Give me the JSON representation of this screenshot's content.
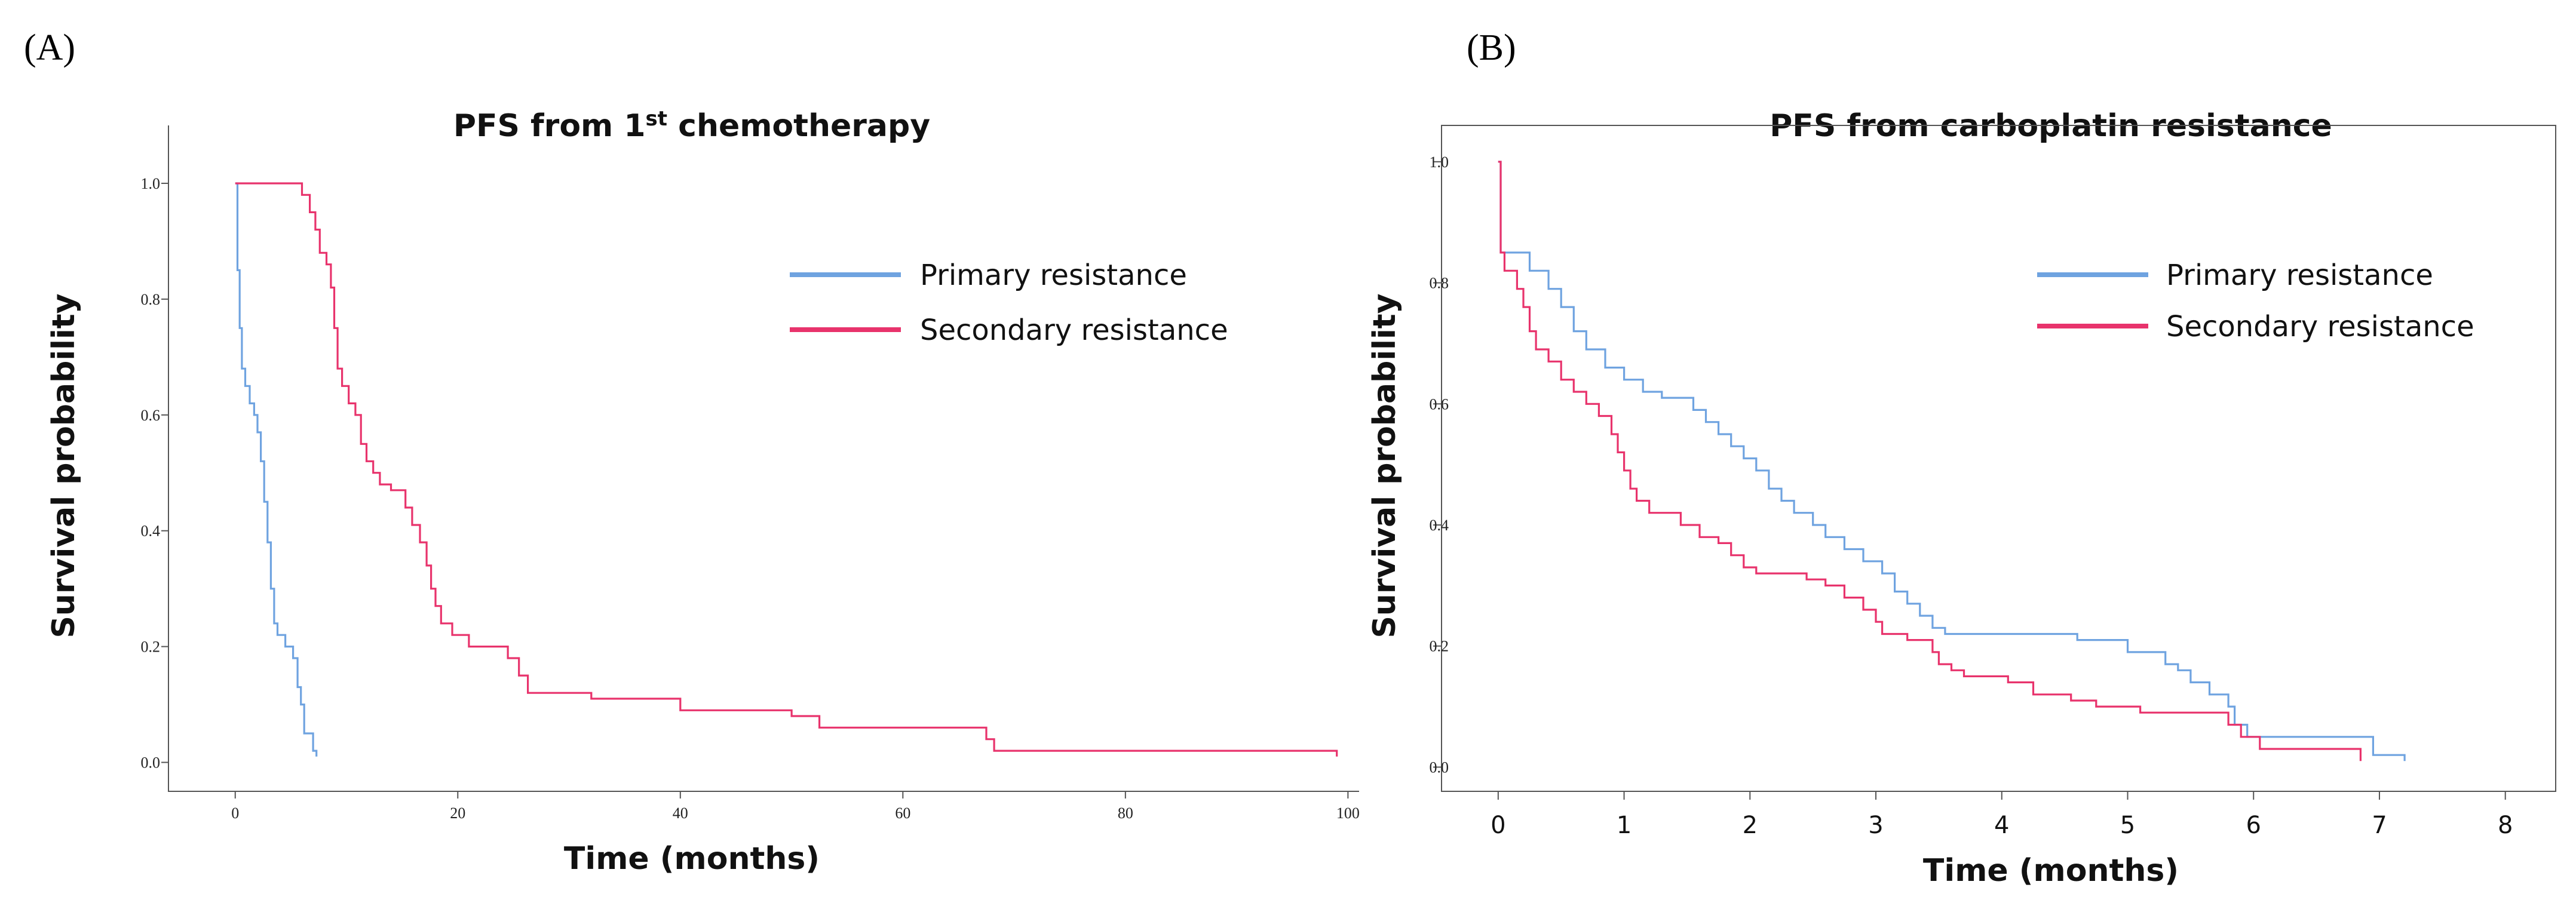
{
  "colors": {
    "primary": "#6fa3e0",
    "secondary": "#e8336c"
  },
  "chart_data": [
    {
      "panel_label": "(A)",
      "type": "line",
      "subtype": "kaplan-meier step",
      "title": {
        "main": "PFS from 1",
        "sup": "st",
        "rest": " chemotherapy"
      },
      "xlabel": "Time (months)",
      "ylabel": "Survival probability",
      "xlim": [
        -6,
        101
      ],
      "ylim": [
        -0.05,
        1.1
      ],
      "xticks": [
        0,
        20,
        40,
        60,
        80,
        100
      ],
      "xtick_labels": [
        "0",
        "20",
        "40",
        "60",
        "80",
        "100"
      ],
      "yticks": [
        0.0,
        0.2,
        0.4,
        0.6,
        0.8,
        1.0
      ],
      "ytick_labels": [
        "0.0",
        "0.2",
        "0.4",
        "0.6",
        "0.8",
        "1.0"
      ],
      "legend": [
        "Primary resistance",
        "Secondary resistance"
      ],
      "series": [
        {
          "name": "Primary resistance",
          "color": "#6fa3e0",
          "points": [
            [
              0,
              1.0
            ],
            [
              0.2,
              0.85
            ],
            [
              0.4,
              0.75
            ],
            [
              0.6,
              0.68
            ],
            [
              0.9,
              0.65
            ],
            [
              1.3,
              0.62
            ],
            [
              1.7,
              0.6
            ],
            [
              2.0,
              0.57
            ],
            [
              2.3,
              0.52
            ],
            [
              2.6,
              0.45
            ],
            [
              2.9,
              0.38
            ],
            [
              3.2,
              0.3
            ],
            [
              3.5,
              0.24
            ],
            [
              3.8,
              0.22
            ],
            [
              4.5,
              0.2
            ],
            [
              5.2,
              0.18
            ],
            [
              5.6,
              0.13
            ],
            [
              5.9,
              0.1
            ],
            [
              6.2,
              0.05
            ],
            [
              7.0,
              0.02
            ],
            [
              7.3,
              0.01
            ]
          ]
        },
        {
          "name": "Secondary resistance",
          "color": "#e8336c",
          "points": [
            [
              0,
              1.0
            ],
            [
              6.0,
              0.98
            ],
            [
              6.7,
              0.95
            ],
            [
              7.2,
              0.92
            ],
            [
              7.6,
              0.88
            ],
            [
              8.2,
              0.86
            ],
            [
              8.6,
              0.82
            ],
            [
              8.9,
              0.75
            ],
            [
              9.2,
              0.68
            ],
            [
              9.6,
              0.65
            ],
            [
              10.2,
              0.62
            ],
            [
              10.8,
              0.6
            ],
            [
              11.3,
              0.55
            ],
            [
              11.8,
              0.52
            ],
            [
              12.4,
              0.5
            ],
            [
              13.0,
              0.48
            ],
            [
              14.0,
              0.47
            ],
            [
              15.3,
              0.44
            ],
            [
              15.9,
              0.41
            ],
            [
              16.6,
              0.38
            ],
            [
              17.2,
              0.34
            ],
            [
              17.6,
              0.3
            ],
            [
              18.0,
              0.27
            ],
            [
              18.5,
              0.24
            ],
            [
              19.5,
              0.22
            ],
            [
              21.0,
              0.2
            ],
            [
              24.5,
              0.18
            ],
            [
              25.5,
              0.15
            ],
            [
              26.3,
              0.12
            ],
            [
              32.0,
              0.11
            ],
            [
              40.0,
              0.09
            ],
            [
              50.0,
              0.08
            ],
            [
              52.5,
              0.06
            ],
            [
              67.5,
              0.04
            ],
            [
              68.2,
              0.02
            ],
            [
              99.0,
              0.01
            ]
          ]
        }
      ]
    },
    {
      "panel_label": "(B)",
      "type": "line",
      "subtype": "kaplan-meier step",
      "title": {
        "main": "PFS from carboplatin resistance",
        "sup": "",
        "rest": ""
      },
      "xlabel": "Time (months)",
      "ylabel": "Survival probability",
      "xlim": [
        -0.45,
        8.4
      ],
      "ylim": [
        -0.04,
        1.06
      ],
      "xticks": [
        0,
        1,
        2,
        3,
        4,
        5,
        6,
        7,
        8
      ],
      "xtick_labels": [
        "0",
        "1",
        "2",
        "3",
        "4",
        "5",
        "6",
        "7",
        "8"
      ],
      "yticks": [
        0.0,
        0.2,
        0.4,
        0.6,
        0.8,
        1.0
      ],
      "ytick_labels": [
        "0.0",
        "0.2",
        "0.4",
        "0.6",
        "0.8",
        "1.0"
      ],
      "legend": [
        "Primary resistance",
        "Secondary resistance"
      ],
      "series": [
        {
          "name": "Primary resistance",
          "color": "#6fa3e0",
          "points": [
            [
              0,
              1.0
            ],
            [
              0.02,
              0.85
            ],
            [
              0.25,
              0.82
            ],
            [
              0.4,
              0.79
            ],
            [
              0.5,
              0.76
            ],
            [
              0.6,
              0.72
            ],
            [
              0.7,
              0.69
            ],
            [
              0.85,
              0.66
            ],
            [
              1.0,
              0.64
            ],
            [
              1.15,
              0.62
            ],
            [
              1.3,
              0.61
            ],
            [
              1.55,
              0.59
            ],
            [
              1.65,
              0.57
            ],
            [
              1.75,
              0.55
            ],
            [
              1.85,
              0.53
            ],
            [
              1.95,
              0.51
            ],
            [
              2.05,
              0.49
            ],
            [
              2.15,
              0.46
            ],
            [
              2.25,
              0.44
            ],
            [
              2.35,
              0.42
            ],
            [
              2.5,
              0.4
            ],
            [
              2.6,
              0.38
            ],
            [
              2.75,
              0.36
            ],
            [
              2.9,
              0.34
            ],
            [
              3.05,
              0.32
            ],
            [
              3.15,
              0.29
            ],
            [
              3.25,
              0.27
            ],
            [
              3.35,
              0.25
            ],
            [
              3.45,
              0.23
            ],
            [
              3.55,
              0.22
            ],
            [
              4.6,
              0.21
            ],
            [
              5.0,
              0.19
            ],
            [
              5.3,
              0.17
            ],
            [
              5.4,
              0.16
            ],
            [
              5.5,
              0.14
            ],
            [
              5.65,
              0.12
            ],
            [
              5.8,
              0.1
            ],
            [
              5.85,
              0.07
            ],
            [
              5.95,
              0.05
            ],
            [
              6.95,
              0.02
            ],
            [
              7.2,
              0.01
            ]
          ]
        },
        {
          "name": "Secondary resistance",
          "color": "#e8336c",
          "points": [
            [
              0,
              1.0
            ],
            [
              0.02,
              0.85
            ],
            [
              0.05,
              0.82
            ],
            [
              0.15,
              0.79
            ],
            [
              0.2,
              0.76
            ],
            [
              0.25,
              0.72
            ],
            [
              0.3,
              0.69
            ],
            [
              0.4,
              0.67
            ],
            [
              0.5,
              0.64
            ],
            [
              0.6,
              0.62
            ],
            [
              0.7,
              0.6
            ],
            [
              0.8,
              0.58
            ],
            [
              0.9,
              0.55
            ],
            [
              0.95,
              0.52
            ],
            [
              1.0,
              0.49
            ],
            [
              1.05,
              0.46
            ],
            [
              1.1,
              0.44
            ],
            [
              1.2,
              0.42
            ],
            [
              1.45,
              0.4
            ],
            [
              1.6,
              0.38
            ],
            [
              1.75,
              0.37
            ],
            [
              1.85,
              0.35
            ],
            [
              1.95,
              0.33
            ],
            [
              2.05,
              0.32
            ],
            [
              2.45,
              0.31
            ],
            [
              2.6,
              0.3
            ],
            [
              2.75,
              0.28
            ],
            [
              2.9,
              0.26
            ],
            [
              3.0,
              0.24
            ],
            [
              3.05,
              0.22
            ],
            [
              3.25,
              0.21
            ],
            [
              3.45,
              0.19
            ],
            [
              3.5,
              0.17
            ],
            [
              3.6,
              0.16
            ],
            [
              3.7,
              0.15
            ],
            [
              4.05,
              0.14
            ],
            [
              4.25,
              0.12
            ],
            [
              4.55,
              0.11
            ],
            [
              4.75,
              0.1
            ],
            [
              5.1,
              0.09
            ],
            [
              5.8,
              0.07
            ],
            [
              5.9,
              0.05
            ],
            [
              6.05,
              0.03
            ],
            [
              6.85,
              0.01
            ]
          ]
        }
      ]
    }
  ]
}
